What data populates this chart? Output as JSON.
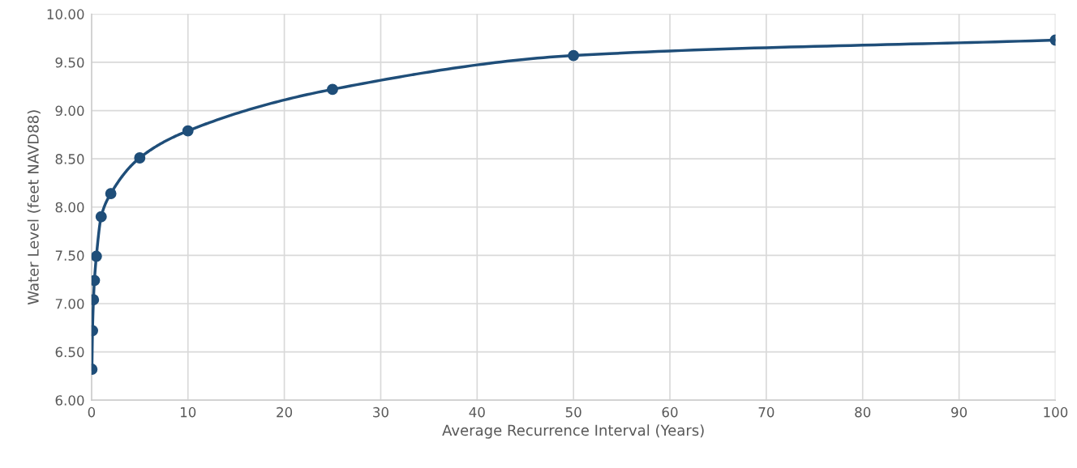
{
  "chart_data": {
    "type": "line",
    "xlabel": "Average Recurrence Interval (Years)",
    "ylabel": "Water Level (feet NAVD88)",
    "x": [
      0.04,
      0.1,
      0.2,
      0.3,
      0.5,
      1,
      2,
      5,
      10,
      25,
      50,
      100
    ],
    "series": [
      {
        "color": "#1f4e79",
        "values": [
          6.32,
          6.72,
          7.04,
          7.24,
          7.49,
          7.9,
          8.14,
          8.51,
          8.79,
          9.22,
          9.57,
          9.73
        ]
      }
    ],
    "xlim": [
      0,
      100
    ],
    "xticks": [
      0,
      10,
      20,
      30,
      40,
      50,
      60,
      70,
      80,
      90,
      100
    ],
    "ylim": [
      6,
      10
    ],
    "yticks": [
      {
        "value": 6,
        "label": "6.00"
      },
      {
        "value": 6.5,
        "label": "6.50"
      },
      {
        "value": 7,
        "label": "7.00"
      },
      {
        "value": 7.5,
        "label": "7.50"
      },
      {
        "value": 8,
        "label": "8.00"
      },
      {
        "value": 8.5,
        "label": "8.50"
      },
      {
        "value": 9,
        "label": "9.00"
      },
      {
        "value": 9.5,
        "label": "9.50"
      },
      {
        "value": 10,
        "label": "10.00"
      }
    ],
    "grid": true,
    "marker": "circle",
    "line_style": "solid"
  }
}
